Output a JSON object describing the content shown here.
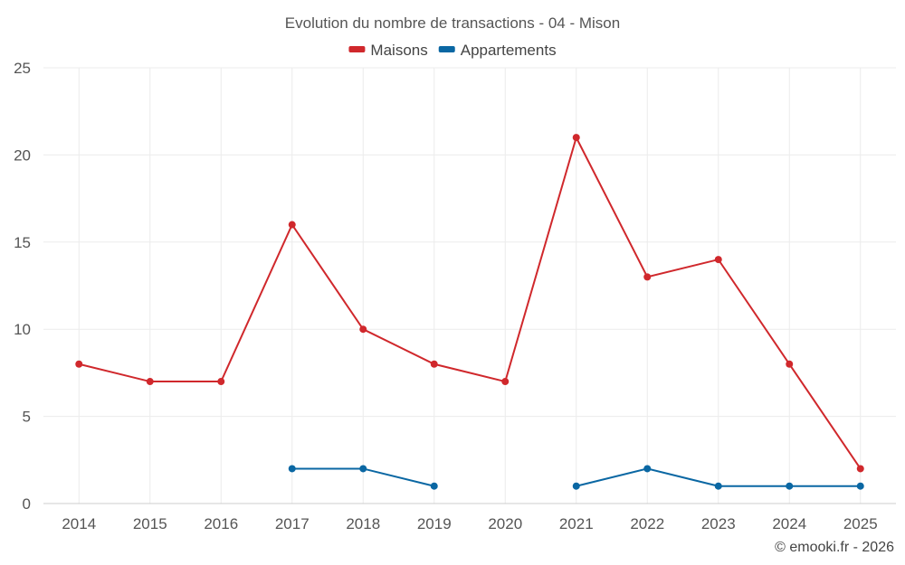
{
  "chart_data": {
    "type": "line",
    "title": "Evolution du nombre de transactions - 04 - Mison",
    "categories": [
      "2014",
      "2015",
      "2016",
      "2017",
      "2018",
      "2019",
      "2020",
      "2021",
      "2022",
      "2023",
      "2024",
      "2025"
    ],
    "ylim": [
      0,
      25
    ],
    "yticks": [
      0,
      5,
      10,
      15,
      20,
      25
    ],
    "grid": true,
    "legend_position": "top-center",
    "series": [
      {
        "name": "Maisons",
        "color": "#d0282c",
        "values": [
          8,
          7,
          7,
          16,
          10,
          8,
          7,
          21,
          13,
          14,
          8,
          2
        ]
      },
      {
        "name": "Appartements",
        "color": "#0a67a3",
        "values": [
          null,
          null,
          null,
          2,
          2,
          1,
          null,
          1,
          2,
          1,
          1,
          1
        ]
      }
    ]
  },
  "credit": "© emooki.fr - 2026"
}
